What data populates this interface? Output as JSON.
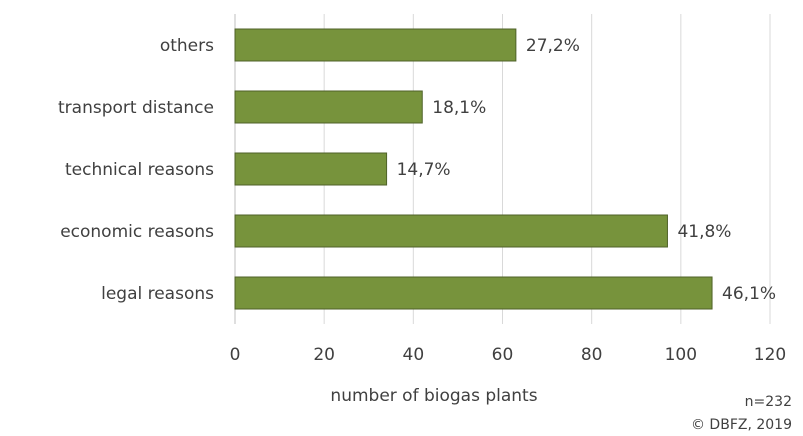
{
  "chart_data": {
    "type": "bar",
    "orientation": "horizontal",
    "categories": [
      "others",
      "transport distance",
      "technical reasons",
      "economic reasons",
      "legal reasons"
    ],
    "values": [
      63,
      42,
      34,
      97,
      107
    ],
    "data_labels": [
      "27,2%",
      "18,1%",
      "14,7%",
      "41,8%",
      "46,1%"
    ],
    "xlabel": "number of biogas plants",
    "xlim": [
      0,
      120
    ],
    "xticks": [
      0,
      20,
      40,
      60,
      80,
      100,
      120
    ],
    "grid": true,
    "bar_color": "#77933c",
    "bar_edge_color": "#4f6228"
  },
  "footnote": {
    "sample": "n=232",
    "copyright": "© DBFZ, 2019"
  }
}
